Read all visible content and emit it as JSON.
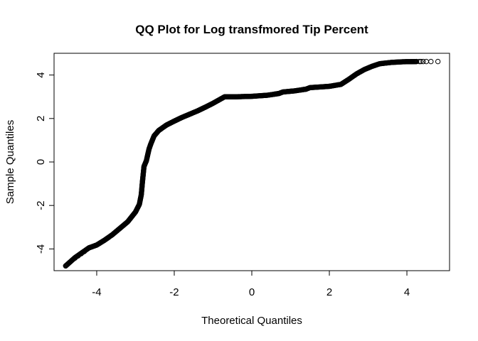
{
  "chart_data": {
    "type": "scatter",
    "title": "QQ Plot for Log transfmored Tip Percent",
    "xlabel": "Theoretical Quantiles",
    "ylabel": "Sample Quantiles",
    "xlim": [
      -5.1,
      5.1
    ],
    "ylim": [
      -5.0,
      5.0
    ],
    "x_ticks": [
      -4,
      -2,
      0,
      2,
      4
    ],
    "x_tick_labels": [
      "-4",
      "-2",
      "0",
      "2",
      "4"
    ],
    "y_ticks": [
      -4,
      -2,
      0,
      2,
      4
    ],
    "y_tick_labels": [
      "-4",
      "-2",
      "0",
      "2",
      "4"
    ],
    "grid": false,
    "marker": "open-circle",
    "curve": [
      [
        -4.8,
        -4.78
      ],
      [
        -4.56,
        -4.4
      ],
      [
        -4.4,
        -4.2
      ],
      [
        -4.2,
        -3.95
      ],
      [
        -4.0,
        -3.82
      ],
      [
        -3.8,
        -3.6
      ],
      [
        -3.6,
        -3.35
      ],
      [
        -3.4,
        -3.05
      ],
      [
        -3.2,
        -2.75
      ],
      [
        -3.0,
        -2.3
      ],
      [
        -2.9,
        -1.95
      ],
      [
        -2.85,
        -1.5
      ],
      [
        -2.82,
        -0.9
      ],
      [
        -2.78,
        -0.2
      ],
      [
        -2.72,
        0.05
      ],
      [
        -2.65,
        0.6
      ],
      [
        -2.6,
        0.85
      ],
      [
        -2.52,
        1.2
      ],
      [
        -2.4,
        1.45
      ],
      [
        -2.2,
        1.7
      ],
      [
        -2.0,
        1.88
      ],
      [
        -1.8,
        2.05
      ],
      [
        -1.6,
        2.2
      ],
      [
        -1.4,
        2.35
      ],
      [
        -1.2,
        2.52
      ],
      [
        -1.0,
        2.7
      ],
      [
        -0.8,
        2.9
      ],
      [
        -0.7,
        3.0
      ],
      [
        -0.4,
        3.0
      ],
      [
        0.0,
        3.02
      ],
      [
        0.4,
        3.07
      ],
      [
        0.7,
        3.15
      ],
      [
        0.8,
        3.22
      ],
      [
        1.1,
        3.27
      ],
      [
        1.4,
        3.35
      ],
      [
        1.5,
        3.42
      ],
      [
        2.0,
        3.48
      ],
      [
        2.3,
        3.57
      ],
      [
        2.5,
        3.8
      ],
      [
        2.7,
        4.05
      ],
      [
        2.9,
        4.25
      ],
      [
        3.1,
        4.4
      ],
      [
        3.3,
        4.52
      ],
      [
        3.6,
        4.58
      ],
      [
        3.9,
        4.61
      ],
      [
        4.25,
        4.62
      ]
    ],
    "tail_points": [
      [
        4.32,
        4.62
      ],
      [
        4.36,
        4.62
      ],
      [
        4.42,
        4.62
      ],
      [
        4.5,
        4.62
      ],
      [
        4.62,
        4.62
      ],
      [
        4.8,
        4.62
      ],
      [
        -4.8,
        -4.78
      ],
      [
        -4.56,
        -4.42
      ],
      [
        -4.48,
        -4.32
      ],
      [
        -4.4,
        -4.22
      ],
      [
        -4.32,
        -4.12
      ]
    ]
  }
}
